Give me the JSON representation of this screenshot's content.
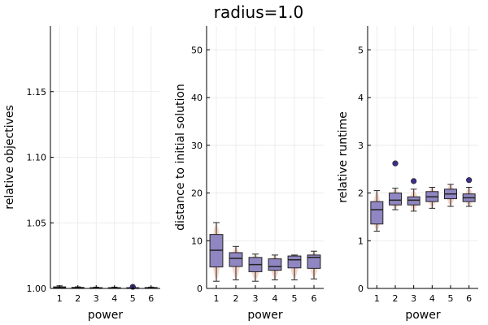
{
  "chart_data": {
    "type": "box",
    "title": "radius=1.0",
    "colors": {
      "box_fill": "#8f86c2",
      "box_stroke": "#222222",
      "violin_fill": "#f3c7b8",
      "outlier": "#3b2f86"
    },
    "grid": true,
    "legend": "none",
    "panels": [
      {
        "xlabel": "power",
        "ylabel": "relative objectives",
        "ylim": [
          1.0,
          1.2
        ],
        "yticks": [
          1.0,
          1.05,
          1.1,
          1.15
        ],
        "yticklabels": [
          "1.00",
          "1.05",
          "1.10",
          "1.15"
        ],
        "categories": [
          "1",
          "2",
          "3",
          "4",
          "5",
          "6"
        ],
        "boxes": [
          {
            "x": 1,
            "min": 1.0,
            "q1": 1.0,
            "median": 1.0005,
            "q3": 1.0012,
            "max": 1.002,
            "outliers": []
          },
          {
            "x": 2,
            "min": 1.0,
            "q1": 1.0,
            "median": 1.0003,
            "q3": 1.0008,
            "max": 1.0012,
            "outliers": []
          },
          {
            "x": 3,
            "min": 1.0,
            "q1": 1.0,
            "median": 1.0002,
            "q3": 1.0006,
            "max": 1.001,
            "outliers": []
          },
          {
            "x": 4,
            "min": 1.0,
            "q1": 1.0,
            "median": 1.0002,
            "q3": 1.0006,
            "max": 1.001,
            "outliers": []
          },
          {
            "x": 5,
            "min": 1.0,
            "q1": 1.0,
            "median": 1.0002,
            "q3": 1.0006,
            "max": 1.001,
            "outliers": [
              1.0012
            ]
          },
          {
            "x": 6,
            "min": 1.0,
            "q1": 1.0,
            "median": 1.0003,
            "q3": 1.0007,
            "max": 1.001,
            "outliers": []
          }
        ]
      },
      {
        "xlabel": "power",
        "ylabel": "distance to initial solution",
        "ylim": [
          0,
          55
        ],
        "yticks": [
          0,
          10,
          20,
          30,
          40,
          50
        ],
        "yticklabels": [
          "0",
          "10",
          "20",
          "30",
          "40",
          "50"
        ],
        "categories": [
          "1",
          "2",
          "3",
          "4",
          "5",
          "6"
        ],
        "boxes": [
          {
            "x": 1,
            "min": 1.5,
            "q1": 4.5,
            "median": 8.0,
            "q3": 11.3,
            "max": 13.8,
            "outliers": []
          },
          {
            "x": 2,
            "min": 1.8,
            "q1": 4.6,
            "median": 6.3,
            "q3": 7.5,
            "max": 8.8,
            "outliers": []
          },
          {
            "x": 3,
            "min": 1.5,
            "q1": 3.5,
            "median": 5.0,
            "q3": 6.5,
            "max": 7.2,
            "outliers": []
          },
          {
            "x": 4,
            "min": 1.8,
            "q1": 3.8,
            "median": 4.6,
            "q3": 6.2,
            "max": 7.0,
            "outliers": []
          },
          {
            "x": 5,
            "min": 1.8,
            "q1": 4.3,
            "median": 6.0,
            "q3": 6.8,
            "max": 7.0,
            "outliers": []
          },
          {
            "x": 6,
            "min": 2.0,
            "q1": 4.2,
            "median": 6.5,
            "q3": 7.0,
            "max": 7.8,
            "outliers": []
          }
        ]
      },
      {
        "xlabel": "power",
        "ylabel": "relative runtime",
        "ylim": [
          0,
          5.5
        ],
        "yticks": [
          0,
          1,
          2,
          3,
          4,
          5
        ],
        "yticklabels": [
          "0",
          "1",
          "2",
          "3",
          "4",
          "5"
        ],
        "categories": [
          "1",
          "2",
          "3",
          "4",
          "5",
          "6"
        ],
        "boxes": [
          {
            "x": 1,
            "min": 1.2,
            "q1": 1.35,
            "median": 1.65,
            "q3": 1.82,
            "max": 2.05,
            "outliers": []
          },
          {
            "x": 2,
            "min": 1.65,
            "q1": 1.75,
            "median": 1.85,
            "q3": 2.0,
            "max": 2.1,
            "outliers": [
              2.62
            ]
          },
          {
            "x": 3,
            "min": 1.62,
            "q1": 1.75,
            "median": 1.85,
            "q3": 1.92,
            "max": 2.08,
            "outliers": [
              2.25
            ]
          },
          {
            "x": 4,
            "min": 1.68,
            "q1": 1.82,
            "median": 1.92,
            "q3": 2.03,
            "max": 2.12,
            "outliers": []
          },
          {
            "x": 5,
            "min": 1.72,
            "q1": 1.88,
            "median": 1.98,
            "q3": 2.08,
            "max": 2.18,
            "outliers": []
          },
          {
            "x": 6,
            "min": 1.72,
            "q1": 1.82,
            "median": 1.9,
            "q3": 1.98,
            "max": 2.12,
            "outliers": [
              2.27
            ]
          }
        ]
      }
    ]
  }
}
